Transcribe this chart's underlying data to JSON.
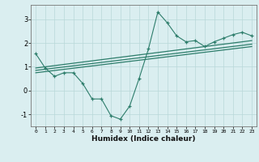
{
  "x_data": [
    0,
    1,
    2,
    3,
    4,
    5,
    6,
    7,
    8,
    9,
    10,
    11,
    12,
    13,
    14,
    15,
    16,
    17,
    18,
    19,
    20,
    21,
    22,
    23
  ],
  "y_scatter": [
    1.55,
    0.95,
    0.6,
    0.75,
    0.75,
    0.3,
    -0.35,
    -0.35,
    -1.05,
    -1.2,
    -0.65,
    0.5,
    1.75,
    3.3,
    2.85,
    2.3,
    2.05,
    2.1,
    1.85,
    2.05,
    2.2,
    2.35,
    2.45,
    2.3
  ],
  "y_line1_start": 0.75,
  "y_line1_end": 1.85,
  "y_line2_start": 0.85,
  "y_line2_end": 1.95,
  "y_line3_start": 0.95,
  "y_line3_end": 2.1,
  "color": "#2d7d6b",
  "bg_color": "#daeef0",
  "grid_color": "#b8d8d8",
  "xlabel": "Humidex (Indice chaleur)",
  "ylim": [
    -1.5,
    3.6
  ],
  "xlim": [
    -0.5,
    23.5
  ]
}
